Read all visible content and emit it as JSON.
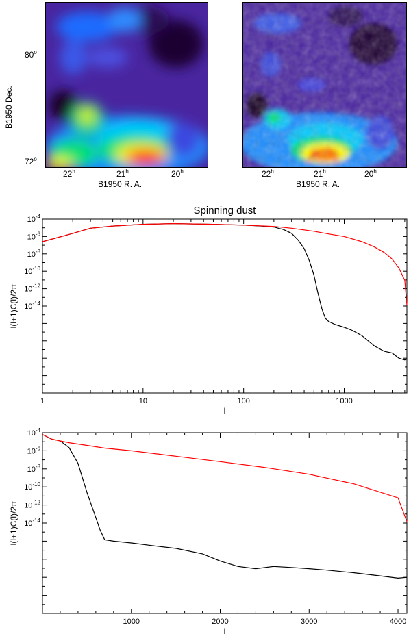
{
  "maps": {
    "ylabel": "B1950 Dec.",
    "xlabel": "B1950 R. A.",
    "y_ticks": [
      {
        "label": "80",
        "sup": "o"
      },
      {
        "label": "72",
        "sup": "o"
      }
    ],
    "x_ticks": [
      {
        "label": "22",
        "sup": "h"
      },
      {
        "label": "21",
        "sup": "h"
      },
      {
        "label": "20",
        "sup": "h"
      }
    ],
    "colormap": [
      "#000000",
      "#3a0f6b",
      "#5a2ea8",
      "#3f3fe0",
      "#1f8cff",
      "#00c8ff",
      "#00e070",
      "#b0f000",
      "#ffff00",
      "#ff8000",
      "#ff0000",
      "#ffffff"
    ]
  },
  "chart_data": [
    {
      "type": "line",
      "title": "Spinning dust",
      "xlabel": "l",
      "ylabel": "l(l+1)C(l)/2π",
      "xscale": "log",
      "yscale": "log",
      "xlim": [
        1,
        4200
      ],
      "ylim": [
        1e-14,
        0.0001
      ],
      "x_tick_labels": [
        "1",
        "10",
        "100",
        "1000"
      ],
      "y_tick_labels": [
        {
          "base": "10",
          "exp": "-4"
        },
        {
          "base": "10",
          "exp": "-6"
        },
        {
          "base": "10",
          "exp": "-8"
        },
        {
          "base": "10",
          "exp": "-10"
        },
        {
          "base": "10",
          "exp": "-12"
        },
        {
          "base": "10",
          "exp": "-14"
        }
      ],
      "series": [
        {
          "color": "#000000",
          "x": [
            1,
            2,
            3,
            5,
            10,
            20,
            50,
            100,
            150,
            200,
            250,
            300,
            350,
            400,
            450,
            500,
            550,
            600,
            650,
            700,
            800,
            1000,
            1200,
            1500,
            2000,
            2500,
            3000,
            3500,
            4000,
            4200
          ],
          "y": [
            5e-06,
            1.5e-05,
            3e-05,
            4e-05,
            5e-05,
            5.5e-05,
            5e-05,
            4.5e-05,
            4e-05,
            3.5e-05,
            2.5e-05,
            1.5e-05,
            6e-06,
            2e-06,
            4e-07,
            6e-08,
            5e-09,
            7e-10,
            2e-10,
            1.3e-10,
            9e-11,
            6e-11,
            4e-11,
            2e-11,
            5e-12,
            2.5e-12,
            2e-12,
            1e-12,
            8e-13,
            9e-13
          ]
        },
        {
          "color": "#ff0000",
          "x": [
            1,
            2,
            3,
            5,
            10,
            20,
            50,
            100,
            200,
            300,
            500,
            700,
            1000,
            1500,
            2000,
            2500,
            3000,
            3500,
            4000,
            4200
          ],
          "y": [
            5e-06,
            1.5e-05,
            3e-05,
            4e-05,
            5e-05,
            5.5e-05,
            5e-05,
            4.5e-05,
            3.8e-05,
            3e-05,
            2e-05,
            1.4e-05,
            1e-05,
            5e-06,
            2.5e-06,
            1.2e-06,
            5e-07,
            1.5e-07,
            3e-08,
            1.1e-09
          ]
        }
      ]
    },
    {
      "type": "line",
      "title": "",
      "xlabel": "l",
      "ylabel": "l(l+1)C(l)/2π",
      "xscale": "linear",
      "yscale": "log",
      "xlim": [
        0,
        4100
      ],
      "ylim": [
        1e-14,
        0.0001
      ],
      "x_tick_values": [
        1000,
        2000,
        3000,
        4000
      ],
      "x_tick_labels": [
        "1000",
        "2000",
        "3000",
        "4000"
      ],
      "y_tick_labels": [
        {
          "base": "10",
          "exp": "-4"
        },
        {
          "base": "10",
          "exp": "-6"
        },
        {
          "base": "10",
          "exp": "-8"
        },
        {
          "base": "10",
          "exp": "-10"
        },
        {
          "base": "10",
          "exp": "-12"
        },
        {
          "base": "10",
          "exp": "-14"
        }
      ],
      "series": [
        {
          "color": "#000000",
          "x": [
            1,
            50,
            100,
            200,
            300,
            400,
            500,
            600,
            650,
            700,
            800,
            1000,
            1200,
            1500,
            1800,
            2000,
            2200,
            2400,
            2600,
            2800,
            3000,
            3200,
            3500,
            3800,
            4000,
            4100
          ],
          "y": [
            8e-05,
            6e-05,
            4.5e-05,
            3.5e-05,
            1.5e-05,
            2e-06,
            5e-08,
            2e-09,
            4e-10,
            1.2e-10,
            1e-10,
            8e-11,
            6e-11,
            4e-11,
            2e-11,
            8e-12,
            4e-12,
            3e-12,
            4e-12,
            3.5e-12,
            3e-12,
            2.5e-12,
            1.8e-12,
            1.2e-12,
            9e-13,
            1e-12
          ]
        },
        {
          "color": "#ff0000",
          "x": [
            1,
            50,
            100,
            200,
            300,
            500,
            700,
            1000,
            1500,
            2000,
            2500,
            3000,
            3500,
            4000,
            4100
          ],
          "y": [
            8e-05,
            6e-05,
            4.5e-05,
            3.5e-05,
            2.8e-05,
            2e-05,
            1.4e-05,
            1e-05,
            5e-06,
            2.5e-06,
            1.2e-06,
            5e-07,
            1.5e-07,
            2.5e-08,
            1.2e-09
          ]
        }
      ]
    }
  ]
}
